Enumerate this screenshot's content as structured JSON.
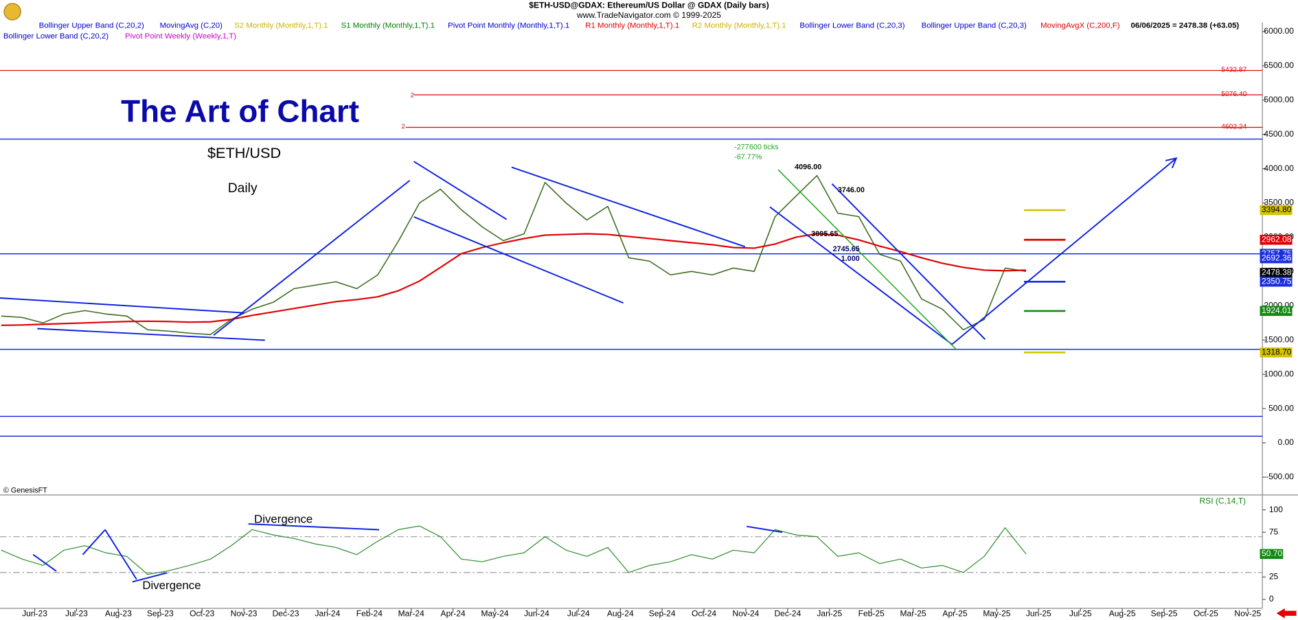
{
  "chart_data": [
    {
      "type": "line",
      "title": "$ETH-USD@GDAX:  Ethereum/US Dollar @ GDAX  (Daily bars)",
      "subtitle": "www.TradeNavigator.com © 1999-2025",
      "legend_items": [
        {
          "label": "Bollinger Upper Band (C,20,2)",
          "color": "#0000cc"
        },
        {
          "label": "MovingAvg (C,20)",
          "color": "#0000cc"
        },
        {
          "label": "S2 Monthly (Monthly,1,T).1",
          "color": "#c8b400"
        },
        {
          "label": "S1 Monthly (Monthly,1,T).1",
          "color": "#008000"
        },
        {
          "label": "Pivot Point Monthly (Monthly,1,T).1",
          "color": "#0000cc"
        },
        {
          "label": "R1 Monthly (Monthly,1,T).1",
          "color": "#dd0000"
        },
        {
          "label": "R2 Monthly (Monthly,1,T).1",
          "color": "#c8b400"
        },
        {
          "label": "Bollinger Lower Band (C,20,3)",
          "color": "#0000cc"
        },
        {
          "label": "Bollinger Upper Band (C,20,3)",
          "color": "#0000cc"
        },
        {
          "label": "MovingAvgX (C,200,F)",
          "color": "#dd0000"
        },
        {
          "label": "06/06/2025 = 2478.38 (+63.05)",
          "color": "#000000"
        },
        {
          "label": "Bollinger Lower Band (C,20,2)",
          "color": "#0000cc"
        },
        {
          "label": "Pivot Point Weekly (Weekly,1,T)",
          "color": "#cc00cc"
        }
      ],
      "xlim": [
        -0.83,
        29.35
      ],
      "x": [
        -0.8,
        -0.3,
        0.2,
        0.7,
        1.2,
        1.7,
        2.2,
        2.7,
        3.2,
        3.7,
        4.2,
        4.7,
        5.2,
        5.7,
        6.2,
        6.7,
        7.2,
        7.7,
        8.2,
        8.7,
        9.2,
        9.7,
        10.2,
        10.7,
        11.2,
        11.7,
        12.2,
        12.7,
        13.2,
        13.7,
        14.2,
        14.7,
        15.2,
        15.7,
        16.2,
        16.7,
        17.2,
        17.7,
        18.2,
        18.7,
        19.2,
        19.7,
        20.2,
        20.7,
        21.2,
        21.7,
        22.2,
        22.7,
        23.2,
        23.7
      ],
      "ylim": [
        -760,
        6133
      ],
      "yticks": [
        {
          "value": -500,
          "label": "-500.00"
        },
        {
          "value": 0,
          "label": "0.00"
        },
        {
          "value": 500,
          "label": "500.00"
        },
        {
          "value": 1000,
          "label": "1000.00"
        },
        {
          "value": 1500,
          "label": "1500.00"
        },
        {
          "value": 2000,
          "label": "2000.00"
        },
        {
          "value": 2500,
          "label": "2500.00"
        },
        {
          "value": 3000,
          "label": "3000.00"
        },
        {
          "value": 3500,
          "label": "3500.00"
        },
        {
          "value": 4000,
          "label": "4000.00"
        },
        {
          "value": 4500,
          "label": "4500.00"
        },
        {
          "value": 5000,
          "label": "5000.00"
        },
        {
          "value": 5500,
          "label": "5500.00"
        },
        {
          "value": 6000,
          "label": "6000.00"
        }
      ],
      "series": [
        {
          "color": "#3a6b1e",
          "values": [
            1850,
            1830,
            1750,
            1880,
            1930,
            1880,
            1850,
            1650,
            1630,
            1600,
            1580,
            1800,
            1950,
            2050,
            2250,
            2300,
            2350,
            2250,
            2450,
            2950,
            3500,
            3700,
            3400,
            3150,
            2950,
            3050,
            3800,
            3500,
            3250,
            3450,
            2700,
            2650,
            2450,
            2500,
            2450,
            2550,
            2500,
            3300,
            3600,
            3900,
            3350,
            3300,
            2750,
            2650,
            2100,
            1950,
            1650,
            1800,
            2550,
            2500
          ]
        },
        {
          "color": "#e00000",
          "values": [
            1715,
            1720,
            1730,
            1740,
            1750,
            1760,
            1770,
            1775,
            1770,
            1760,
            1765,
            1800,
            1860,
            1910,
            1960,
            2010,
            2060,
            2090,
            2130,
            2220,
            2360,
            2560,
            2760,
            2850,
            2920,
            2980,
            3030,
            3040,
            3050,
            3040,
            3010,
            2980,
            2950,
            2920,
            2890,
            2850,
            2840,
            2900,
            3000,
            3050,
            3030,
            2960,
            2870,
            2790,
            2700,
            2620,
            2560,
            2520,
            2510,
            2520
          ]
        }
      ],
      "levels": [
        {
          "value": 5432.87,
          "label": "5432.87",
          "color": "#e00000"
        },
        {
          "value": 5076.4,
          "label": "5076.40",
          "color": "#e00000"
        },
        {
          "value": 4602.24,
          "label": "4602.24",
          "color": "#e00000"
        }
      ],
      "hlines": {
        "color": "#0a1ee0",
        "values": [
          4431,
          2757.75,
          1364,
          386,
          97
        ]
      },
      "axis_boxes": [
        {
          "value": 3394.8,
          "label": "3394.80",
          "color": "#d4c400",
          "text_color": "#000000",
          "segment": true
        },
        {
          "value": 2962.08,
          "label": "2962.08",
          "color": "#dd0000",
          "text_color": "#ffffff",
          "segment": true
        },
        {
          "value": 2757.75,
          "label": "2757.75",
          "color": "#1a2ee0",
          "text_color": "#ffffff",
          "segment": false
        },
        {
          "value": 2692.36,
          "label": "2692.36",
          "color": "#1a2ee0",
          "text_color": "#ffffff",
          "segment": false
        },
        {
          "value": 2478.38,
          "label": "2478.38",
          "color": "#000000",
          "text_color": "#ffffff",
          "segment": false
        },
        {
          "value": 2350.75,
          "label": "2350.75",
          "color": "#1a2ee0",
          "text_color": "#ffffff",
          "segment": true
        },
        {
          "value": 1924.01,
          "label": "1924.01",
          "color": "#108a10",
          "text_color": "#ffffff",
          "segment": true
        },
        {
          "value": 1318.7,
          "label": "1318.70",
          "color": "#d4c400",
          "text_color": "#000000",
          "segment": true
        }
      ],
      "annotations": [
        {
          "text": "The Art of Chart",
          "color": "#0a0aa8"
        },
        {
          "text": "$ETH/USD",
          "color": "#000000"
        },
        {
          "text": "Daily",
          "color": "#000000"
        },
        {
          "text": "-277600 ticks",
          "color": "#22aa22"
        },
        {
          "text": "-67.77%",
          "color": "#22aa22"
        },
        {
          "text": "4096.00",
          "color": "#000000"
        },
        {
          "text": "3746.00",
          "color": "#000000"
        },
        {
          "text": "3095.65",
          "color": "#000000"
        },
        {
          "text": "2745.65",
          "color": "#000066"
        },
        {
          "text": "1.000",
          "color": "#000066"
        },
        {
          "text": "© GenesisFT",
          "color": "#000000"
        },
        {
          "text": "Divergence",
          "color": "#000000"
        },
        {
          "text": "Divergence",
          "color": "#000000"
        },
        {
          "text": "2",
          "color": "#e00000"
        },
        {
          "text": "2",
          "color": "#e00000"
        }
      ]
    },
    {
      "type": "line",
      "title": "RSI (C,14,T)",
      "title_color": "#108a10",
      "xlim": [
        -0.83,
        29.35
      ],
      "xticks": [
        {
          "value": 0,
          "label": "Jun-23"
        },
        {
          "value": 1,
          "label": "Jul-23"
        },
        {
          "value": 2,
          "label": "Aug-23"
        },
        {
          "value": 3,
          "label": "Sep-23"
        },
        {
          "value": 4,
          "label": "Oct-23"
        },
        {
          "value": 5,
          "label": "Nov-23"
        },
        {
          "value": 6,
          "label": "Dec-23"
        },
        {
          "value": 7,
          "label": "Jan-24"
        },
        {
          "value": 8,
          "label": "Feb-24"
        },
        {
          "value": 9,
          "label": "Mar-24"
        },
        {
          "value": 10,
          "label": "Apr-24"
        },
        {
          "value": 11,
          "label": "May-24"
        },
        {
          "value": 12,
          "label": "Jun-24"
        },
        {
          "value": 13,
          "label": "Jul-24"
        },
        {
          "value": 14,
          "label": "Aug-24"
        },
        {
          "value": 15,
          "label": "Sep-24"
        },
        {
          "value": 16,
          "label": "Oct-24"
        },
        {
          "value": 17,
          "label": "Nov-24"
        },
        {
          "value": 18,
          "label": "Dec-24"
        },
        {
          "value": 19,
          "label": "Jan-25"
        },
        {
          "value": 20,
          "label": "Feb-25"
        },
        {
          "value": 21,
          "label": "Mar-25"
        },
        {
          "value": 22,
          "label": "Apr-25"
        },
        {
          "value": 23,
          "label": "May-25"
        },
        {
          "value": 24,
          "label": "Jun-25"
        },
        {
          "value": 25,
          "label": "Jul-25"
        },
        {
          "value": 26,
          "label": "Aug-25"
        },
        {
          "value": 27,
          "label": "Sep-25"
        },
        {
          "value": 28,
          "label": "Oct-25"
        },
        {
          "value": 29,
          "label": "Nov-25"
        }
      ],
      "x": [
        -0.8,
        -0.3,
        0.2,
        0.7,
        1.2,
        1.7,
        2.2,
        2.7,
        3.2,
        3.7,
        4.2,
        4.7,
        5.2,
        5.7,
        6.2,
        6.7,
        7.2,
        7.7,
        8.2,
        8.7,
        9.2,
        9.7,
        10.2,
        10.7,
        11.2,
        11.7,
        12.2,
        12.7,
        13.2,
        13.7,
        14.2,
        14.7,
        15.2,
        15.7,
        16.2,
        16.7,
        17.2,
        17.7,
        18.2,
        18.7,
        19.2,
        19.7,
        20.2,
        20.7,
        21.2,
        21.7,
        22.2,
        22.7,
        23.2,
        23.7
      ],
      "ylim": [
        -10,
        112
      ],
      "yticks": [
        0,
        25,
        50,
        75,
        100
      ],
      "refs": [
        70,
        30
      ],
      "series": [
        {
          "color": "#2e8b2e",
          "values": [
            55,
            45,
            38,
            55,
            60,
            52,
            48,
            28,
            32,
            38,
            45,
            60,
            78,
            72,
            68,
            62,
            58,
            50,
            65,
            78,
            82,
            70,
            45,
            42,
            48,
            52,
            70,
            55,
            48,
            58,
            30,
            38,
            42,
            50,
            45,
            55,
            52,
            78,
            72,
            70,
            48,
            52,
            40,
            45,
            35,
            38,
            30,
            48,
            80,
            50.7
          ]
        }
      ],
      "last_label": {
        "value": 50.7,
        "label": "50.70",
        "color": "#108a10"
      }
    }
  ]
}
